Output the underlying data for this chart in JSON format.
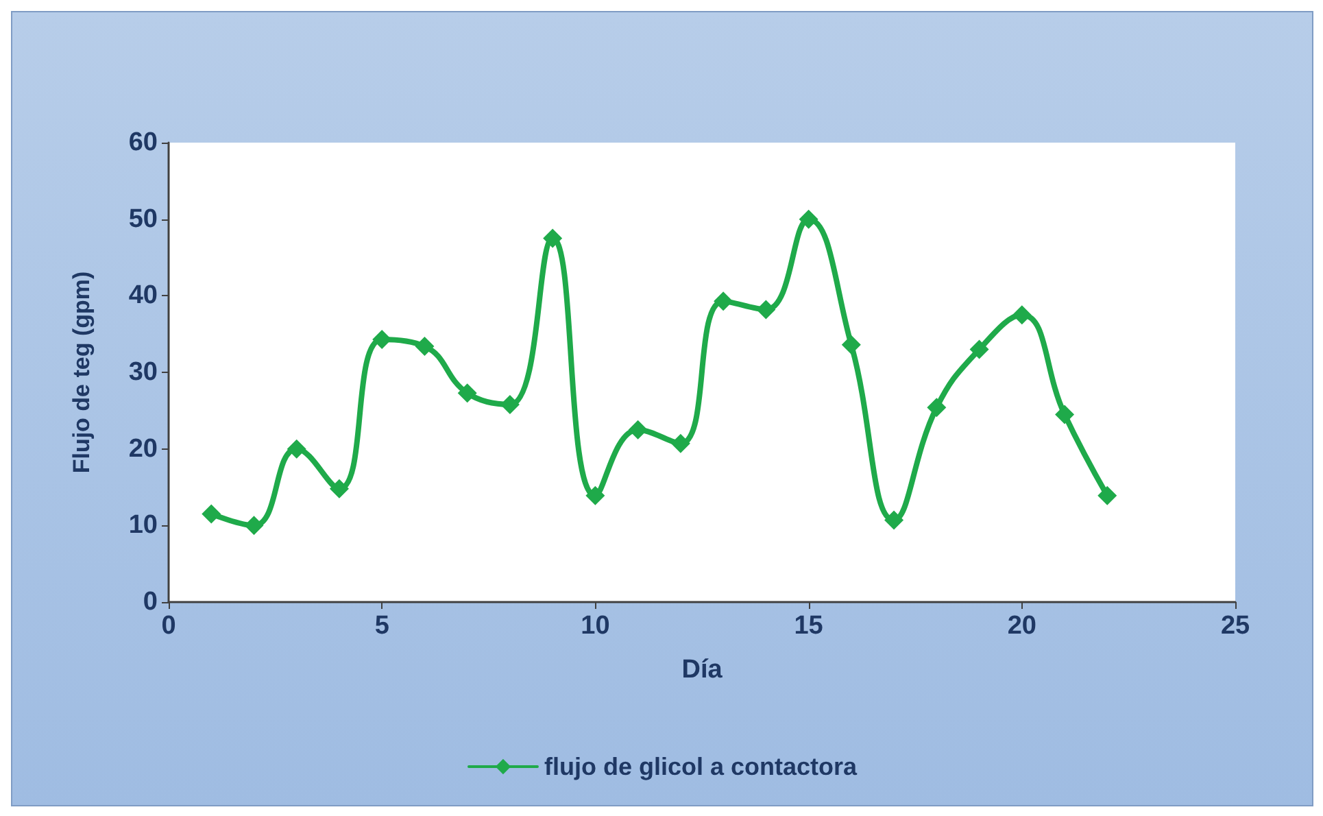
{
  "chart_data": {
    "type": "line",
    "xlabel": "Día",
    "ylabel": "Flujo de teg (gpm)",
    "x": [
      1,
      2,
      3,
      4,
      5,
      6,
      7,
      8,
      9,
      10,
      11,
      12,
      13,
      14,
      15,
      16,
      17,
      18,
      19,
      20,
      21,
      22
    ],
    "series": [
      {
        "name": "flujo de glicol a contactora",
        "color": "#1faa4a",
        "values": [
          11.5,
          10,
          20,
          14.8,
          34.3,
          33.4,
          27.3,
          25.8,
          47.5,
          13.9,
          22.5,
          20.7,
          39.3,
          38.2,
          50,
          33.6,
          10.7,
          25.4,
          33,
          37.5,
          24.5,
          13.9
        ]
      }
    ],
    "xlim": [
      0,
      25
    ],
    "xticks": [
      0,
      5,
      10,
      15,
      20,
      25
    ],
    "ylim": [
      0,
      60
    ],
    "yticks": [
      0,
      10,
      20,
      30,
      40,
      50,
      60
    ],
    "grid": false,
    "legend": "bottom",
    "marker": "diamond",
    "line_style": "solid"
  }
}
